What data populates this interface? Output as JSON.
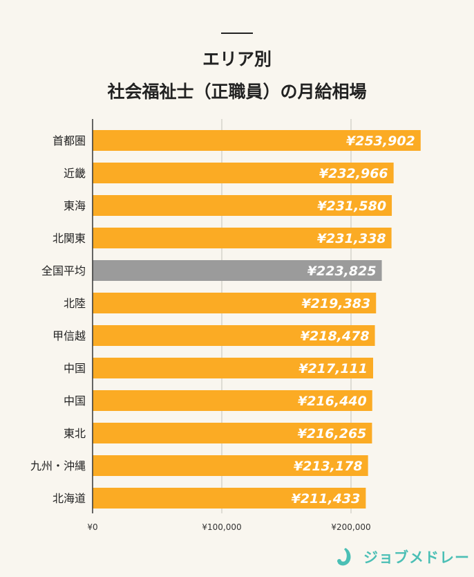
{
  "chart_data": {
    "type": "bar",
    "orientation": "horizontal",
    "title_lines": [
      "エリア別",
      "社会福祉士（正職員）の月給相場"
    ],
    "categories": [
      "首都圏",
      "近畿",
      "東海",
      "北関東",
      "全国平均",
      "北陸",
      "甲信越",
      "中国",
      "中国",
      "東北",
      "九州・沖縄",
      "北海道"
    ],
    "values": [
      253902,
      232966,
      231580,
      231338,
      223825,
      219383,
      218478,
      217111,
      216440,
      216265,
      213178,
      211433
    ],
    "value_labels": [
      "¥253,902",
      "¥232,966",
      "¥231,580",
      "¥231,338",
      "¥223,825",
      "¥219,383",
      "¥218,478",
      "¥217,111",
      "¥216,440",
      "¥216,265",
      "¥213,178",
      "¥211,433"
    ],
    "highlight_index": 4,
    "xlim": [
      0,
      300000
    ],
    "xticks": [
      0,
      100000,
      200000
    ],
    "xtick_labels": [
      "¥0",
      "¥100,000",
      "¥200,000"
    ],
    "grid": true,
    "colors": {
      "bar": "#fbab24",
      "highlight": "#9b9b9b",
      "grid": "#d6d3cc",
      "axis": "#333333",
      "background": "#f9f6ef"
    }
  },
  "brand": {
    "name": "ジョブメドレー",
    "color": "#4bbfb5"
  }
}
